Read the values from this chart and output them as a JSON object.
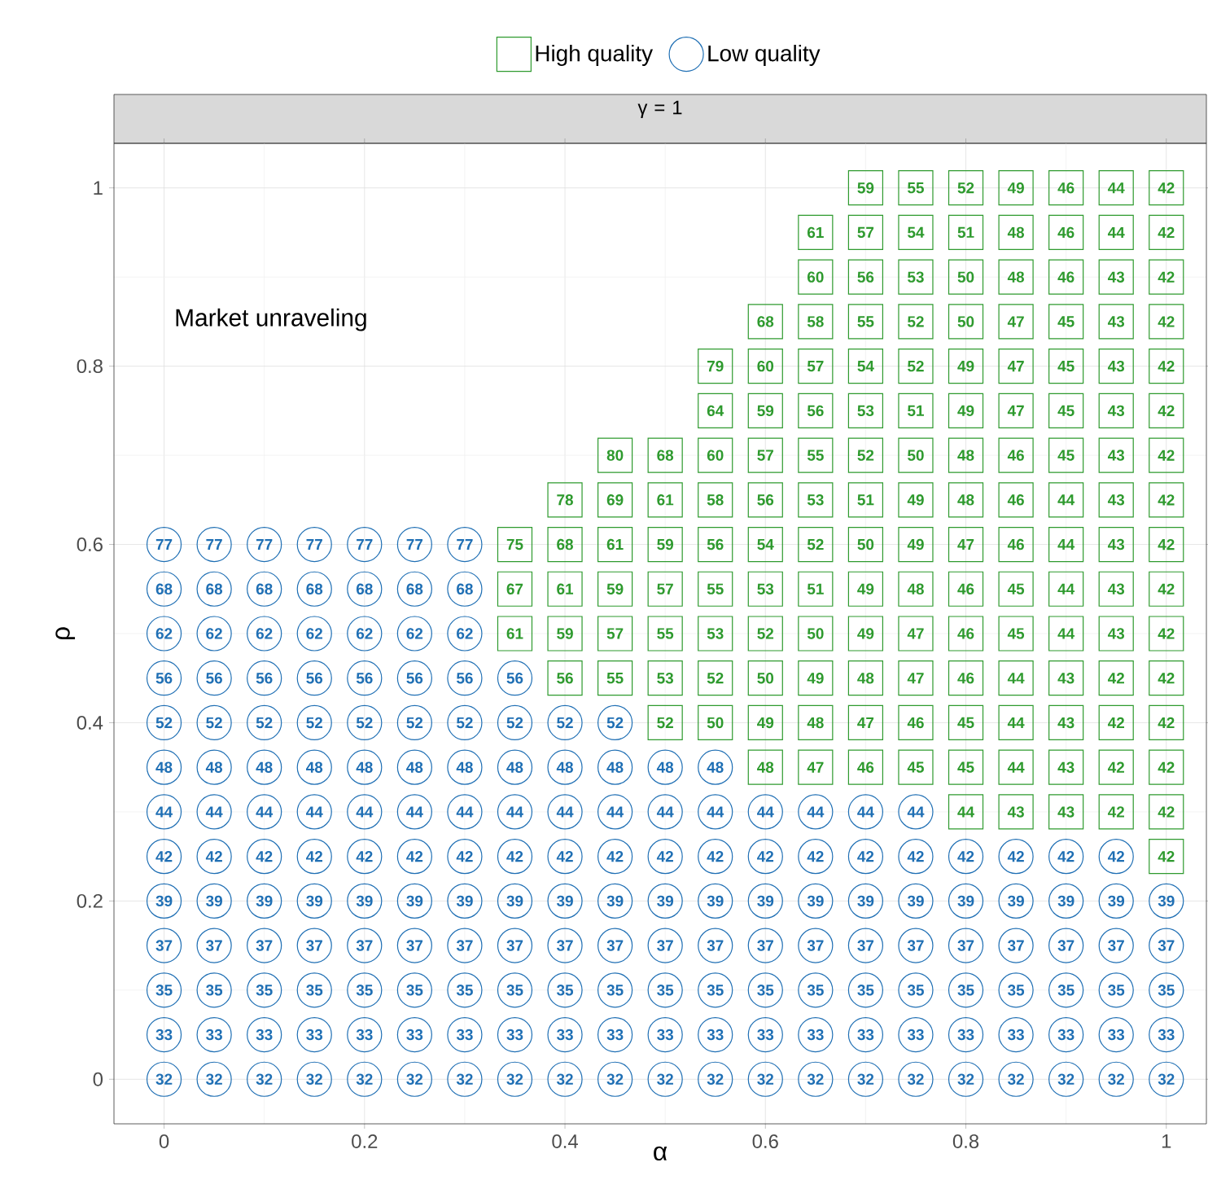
{
  "chart_data": {
    "type": "scatter",
    "title": "γ = 1",
    "xlabel": "α",
    "ylabel": "ρ",
    "xlim": [
      -0.05,
      1.04
    ],
    "ylim": [
      -0.05,
      1.05
    ],
    "xticks": [
      0,
      0.2,
      0.4,
      0.6,
      0.8,
      1
    ],
    "yticks": [
      0,
      0.2,
      0.4,
      0.6,
      0.8,
      1
    ],
    "grid": true,
    "legend": "top",
    "series": [
      {
        "name": "High quality",
        "color": "#2e9a2e",
        "marker": "square",
        "x": [
          1,
          0.8,
          0.85,
          0.9,
          0.95,
          1,
          0.6,
          0.65,
          0.7,
          0.75,
          0.8,
          0.85,
          0.9,
          0.95,
          1,
          0.5,
          0.55,
          0.6,
          0.65,
          0.7,
          0.75,
          0.8,
          0.85,
          0.9,
          0.95,
          1,
          0.4,
          0.45,
          0.5,
          0.55,
          0.6,
          0.65,
          0.7,
          0.75,
          0.8,
          0.85,
          0.9,
          0.95,
          1,
          0.35,
          0.4,
          0.45,
          0.5,
          0.55,
          0.6,
          0.65,
          0.7,
          0.75,
          0.8,
          0.85,
          0.9,
          0.95,
          1,
          0.35,
          0.4,
          0.45,
          0.5,
          0.55,
          0.6,
          0.65,
          0.7,
          0.75,
          0.8,
          0.85,
          0.9,
          0.95,
          1,
          0.35,
          0.4,
          0.45,
          0.5,
          0.55,
          0.6,
          0.65,
          0.7,
          0.75,
          0.8,
          0.85,
          0.9,
          0.95,
          1,
          0.4,
          0.45,
          0.5,
          0.55,
          0.6,
          0.65,
          0.7,
          0.75,
          0.8,
          0.85,
          0.9,
          0.95,
          1,
          0.45,
          0.5,
          0.55,
          0.6,
          0.65,
          0.7,
          0.75,
          0.8,
          0.85,
          0.9,
          0.95,
          1,
          0.55,
          0.6,
          0.65,
          0.7,
          0.75,
          0.8,
          0.85,
          0.9,
          0.95,
          1,
          0.55,
          0.6,
          0.65,
          0.7,
          0.75,
          0.8,
          0.85,
          0.9,
          0.95,
          1,
          0.6,
          0.65,
          0.7,
          0.75,
          0.8,
          0.85,
          0.9,
          0.95,
          1,
          0.65,
          0.7,
          0.75,
          0.8,
          0.85,
          0.9,
          0.95,
          1,
          0.65,
          0.7,
          0.75,
          0.8,
          0.85,
          0.9,
          0.95,
          1,
          0.7,
          0.75,
          0.8,
          0.85,
          0.9,
          0.95,
          1
        ],
        "values": [
          0.25,
          0.3,
          0.3,
          0.3,
          0.3,
          0.3,
          0.35,
          0.35,
          0.35,
          0.35,
          0.35,
          0.35,
          0.35,
          0.35,
          0.35,
          0.4,
          0.4,
          0.4,
          0.4,
          0.4,
          0.4,
          0.4,
          0.4,
          0.4,
          0.4,
          0.4,
          0.45,
          0.45,
          0.45,
          0.45,
          0.45,
          0.45,
          0.45,
          0.45,
          0.45,
          0.45,
          0.45,
          0.45,
          0.45,
          0.5,
          0.5,
          0.5,
          0.5,
          0.5,
          0.5,
          0.5,
          0.5,
          0.5,
          0.5,
          0.5,
          0.5,
          0.5,
          0.5,
          0.55,
          0.55,
          0.55,
          0.55,
          0.55,
          0.55,
          0.55,
          0.55,
          0.55,
          0.55,
          0.55,
          0.55,
          0.55,
          0.55,
          0.6,
          0.6,
          0.6,
          0.6,
          0.6,
          0.6,
          0.6,
          0.6,
          0.6,
          0.6,
          0.6,
          0.6,
          0.6,
          0.6,
          0.65,
          0.65,
          0.65,
          0.65,
          0.65,
          0.65,
          0.65,
          0.65,
          0.65,
          0.65,
          0.65,
          0.65,
          0.65,
          0.7,
          0.7,
          0.7,
          0.7,
          0.7,
          0.7,
          0.7,
          0.7,
          0.7,
          0.7,
          0.7,
          0.7,
          0.75,
          0.75,
          0.75,
          0.75,
          0.75,
          0.75,
          0.75,
          0.75,
          0.75,
          0.75,
          0.8,
          0.8,
          0.8,
          0.8,
          0.8,
          0.8,
          0.8,
          0.8,
          0.8,
          0.8,
          0.85,
          0.85,
          0.85,
          0.85,
          0.85,
          0.85,
          0.85,
          0.85,
          0.85,
          0.9,
          0.9,
          0.9,
          0.9,
          0.9,
          0.9,
          0.9,
          0.9,
          0.95,
          0.95,
          0.95,
          0.95,
          0.95,
          0.95,
          0.95,
          0.95,
          1,
          1,
          1,
          1,
          1,
          1,
          1
        ]
      },
      {
        "name": "Low quality",
        "color": "#1f6fb4",
        "marker": "circle",
        "x": [
          0,
          0.05,
          0.1,
          0.15,
          0.2,
          0.25,
          0.3,
          0.35,
          0.4,
          0.45,
          0.5,
          0.55,
          0.6,
          0.65,
          0.7,
          0.75,
          0.8,
          0.85,
          0.9,
          0.95,
          1,
          0,
          0.05,
          0.1,
          0.15,
          0.2,
          0.25,
          0.3,
          0.35,
          0.4,
          0.45,
          0.5,
          0.55,
          0.6,
          0.65,
          0.7,
          0.75,
          0.8,
          0.85,
          0.9,
          0.95,
          1,
          0,
          0.05,
          0.1,
          0.15,
          0.2,
          0.25,
          0.3,
          0.35,
          0.4,
          0.45,
          0.5,
          0.55,
          0.6,
          0.65,
          0.7,
          0.75,
          0.8,
          0.85,
          0.9,
          0.95,
          1,
          0,
          0.05,
          0.1,
          0.15,
          0.2,
          0.25,
          0.3,
          0.35,
          0.4,
          0.45,
          0.5,
          0.55,
          0.6,
          0.65,
          0.7,
          0.75,
          0.8,
          0.85,
          0.9,
          0.95,
          1,
          0,
          0.05,
          0.1,
          0.15,
          0.2,
          0.25,
          0.3,
          0.35,
          0.4,
          0.45,
          0.5,
          0.55,
          0.6,
          0.65,
          0.7,
          0.75,
          0.8,
          0.85,
          0.9,
          0.95,
          1,
          0,
          0.05,
          0.1,
          0.15,
          0.2,
          0.25,
          0.3,
          0.35,
          0.4,
          0.45,
          0.5,
          0.55,
          0.6,
          0.65,
          0.7,
          0.75,
          0.8,
          0.85,
          0.9,
          0.95,
          0,
          0.05,
          0.1,
          0.15,
          0.2,
          0.25,
          0.3,
          0.35,
          0.4,
          0.45,
          0.5,
          0.55,
          0.6,
          0.65,
          0.7,
          0.75,
          0,
          0.05,
          0.1,
          0.15,
          0.2,
          0.25,
          0.3,
          0.35,
          0.4,
          0.45,
          0.5,
          0.55,
          0,
          0.05,
          0.1,
          0.15,
          0.2,
          0.25,
          0.3,
          0.35,
          0.4,
          0.45,
          0,
          0.05,
          0.1,
          0.15,
          0.2,
          0.25,
          0.3,
          0.35,
          0,
          0.05,
          0.1,
          0.15,
          0.2,
          0.25,
          0.3,
          0,
          0.05,
          0.1,
          0.15,
          0.2,
          0.25,
          0.3,
          0,
          0.05,
          0.1,
          0.15,
          0.2,
          0.25,
          0.3
        ],
        "values": [
          0,
          0,
          0,
          0,
          0,
          0,
          0,
          0,
          0,
          0,
          0,
          0,
          0,
          0,
          0,
          0,
          0,
          0,
          0,
          0,
          0,
          0.05,
          0.05,
          0.05,
          0.05,
          0.05,
          0.05,
          0.05,
          0.05,
          0.05,
          0.05,
          0.05,
          0.05,
          0.05,
          0.05,
          0.05,
          0.05,
          0.05,
          0.05,
          0.05,
          0.05,
          0.05,
          0.1,
          0.1,
          0.1,
          0.1,
          0.1,
          0.1,
          0.1,
          0.1,
          0.1,
          0.1,
          0.1,
          0.1,
          0.1,
          0.1,
          0.1,
          0.1,
          0.1,
          0.1,
          0.1,
          0.1,
          0.1,
          0.15,
          0.15,
          0.15,
          0.15,
          0.15,
          0.15,
          0.15,
          0.15,
          0.15,
          0.15,
          0.15,
          0.15,
          0.15,
          0.15,
          0.15,
          0.15,
          0.15,
          0.15,
          0.15,
          0.15,
          0.15,
          0.2,
          0.2,
          0.2,
          0.2,
          0.2,
          0.2,
          0.2,
          0.2,
          0.2,
          0.2,
          0.2,
          0.2,
          0.2,
          0.2,
          0.2,
          0.2,
          0.2,
          0.2,
          0.2,
          0.2,
          0.2,
          0.25,
          0.25,
          0.25,
          0.25,
          0.25,
          0.25,
          0.25,
          0.25,
          0.25,
          0.25,
          0.25,
          0.25,
          0.25,
          0.25,
          0.25,
          0.25,
          0.25,
          0.25,
          0.25,
          0.25,
          0.3,
          0.3,
          0.3,
          0.3,
          0.3,
          0.3,
          0.3,
          0.3,
          0.3,
          0.3,
          0.3,
          0.3,
          0.3,
          0.3,
          0.3,
          0.3,
          0.35,
          0.35,
          0.35,
          0.35,
          0.35,
          0.35,
          0.35,
          0.35,
          0.35,
          0.35,
          0.35,
          0.35,
          0.4,
          0.4,
          0.4,
          0.4,
          0.4,
          0.4,
          0.4,
          0.4,
          0.4,
          0.4,
          0.45,
          0.45,
          0.45,
          0.45,
          0.45,
          0.45,
          0.45,
          0.45,
          0.5,
          0.5,
          0.5,
          0.5,
          0.5,
          0.5,
          0.5,
          0.55,
          0.55,
          0.55,
          0.55,
          0.55,
          0.55,
          0.55,
          0.6,
          0.6,
          0.6,
          0.6,
          0.6,
          0.6,
          0.6
        ]
      }
    ],
    "annotations": [
      "Market unraveling",
      {
        "text": "42",
        "x": 1,
        "y": 0.25
      },
      {
        "text": "44",
        "x": 0.8,
        "y": 0.3
      },
      {
        "text": "43",
        "x": 0.85,
        "y": 0.3
      },
      {
        "text": "43",
        "x": 0.9,
        "y": 0.3
      },
      {
        "text": "42",
        "x": 0.95,
        "y": 0.3
      },
      {
        "text": "42",
        "x": 1,
        "y": 0.3
      },
      {
        "text": "48",
        "x": 0.6,
        "y": 0.35
      },
      {
        "text": "47",
        "x": 0.65,
        "y": 0.35
      },
      {
        "text": "46",
        "x": 0.7,
        "y": 0.35
      },
      {
        "text": "45",
        "x": 0.75,
        "y": 0.35
      },
      {
        "text": "45",
        "x": 0.8,
        "y": 0.35
      },
      {
        "text": "44",
        "x": 0.85,
        "y": 0.35
      },
      {
        "text": "43",
        "x": 0.9,
        "y": 0.35
      },
      {
        "text": "42",
        "x": 0.95,
        "y": 0.35
      },
      {
        "text": "42",
        "x": 1,
        "y": 0.35
      },
      {
        "text": "52",
        "x": 0.5,
        "y": 0.4
      },
      {
        "text": "50",
        "x": 0.55,
        "y": 0.4
      },
      {
        "text": "49",
        "x": 0.6,
        "y": 0.4
      },
      {
        "text": "48",
        "x": 0.65,
        "y": 0.4
      },
      {
        "text": "47",
        "x": 0.7,
        "y": 0.4
      },
      {
        "text": "46",
        "x": 0.75,
        "y": 0.4
      },
      {
        "text": "45",
        "x": 0.8,
        "y": 0.4
      },
      {
        "text": "44",
        "x": 0.85,
        "y": 0.4
      },
      {
        "text": "43",
        "x": 0.9,
        "y": 0.4
      },
      {
        "text": "42",
        "x": 0.95,
        "y": 0.4
      },
      {
        "text": "42",
        "x": 1,
        "y": 0.4
      },
      {
        "text": "56",
        "x": 0.4,
        "y": 0.45
      },
      {
        "text": "55",
        "x": 0.45,
        "y": 0.45
      },
      {
        "text": "53",
        "x": 0.5,
        "y": 0.45
      },
      {
        "text": "52",
        "x": 0.55,
        "y": 0.45
      },
      {
        "text": "50",
        "x": 0.6,
        "y": 0.45
      },
      {
        "text": "49",
        "x": 0.65,
        "y": 0.45
      },
      {
        "text": "48",
        "x": 0.7,
        "y": 0.45
      },
      {
        "text": "47",
        "x": 0.75,
        "y": 0.45
      },
      {
        "text": "46",
        "x": 0.8,
        "y": 0.45
      },
      {
        "text": "44",
        "x": 0.85,
        "y": 0.45
      },
      {
        "text": "43",
        "x": 0.9,
        "y": 0.45
      },
      {
        "text": "42",
        "x": 0.95,
        "y": 0.45
      },
      {
        "text": "42",
        "x": 1,
        "y": 0.45
      },
      {
        "text": "61",
        "x": 0.35,
        "y": 0.5
      },
      {
        "text": "59",
        "x": 0.4,
        "y": 0.5
      },
      {
        "text": "57",
        "x": 0.45,
        "y": 0.5
      },
      {
        "text": "55",
        "x": 0.5,
        "y": 0.5
      },
      {
        "text": "53",
        "x": 0.55,
        "y": 0.5
      },
      {
        "text": "52",
        "x": 0.6,
        "y": 0.5
      },
      {
        "text": "50",
        "x": 0.65,
        "y": 0.5
      },
      {
        "text": "49",
        "x": 0.7,
        "y": 0.5
      },
      {
        "text": "47",
        "x": 0.75,
        "y": 0.5
      },
      {
        "text": "46",
        "x": 0.8,
        "y": 0.5
      },
      {
        "text": "45",
        "x": 0.85,
        "y": 0.5
      },
      {
        "text": "44",
        "x": 0.9,
        "y": 0.5
      },
      {
        "text": "43",
        "x": 0.95,
        "y": 0.5
      },
      {
        "text": "42",
        "x": 1,
        "y": 0.5
      },
      {
        "text": "67",
        "x": 0.35,
        "y": 0.55
      },
      {
        "text": "61",
        "x": 0.4,
        "y": 0.55
      },
      {
        "text": "59",
        "x": 0.45,
        "y": 0.55
      },
      {
        "text": "57",
        "x": 0.5,
        "y": 0.55
      },
      {
        "text": "55",
        "x": 0.55,
        "y": 0.55
      },
      {
        "text": "53",
        "x": 0.6,
        "y": 0.55
      },
      {
        "text": "51",
        "x": 0.65,
        "y": 0.55
      },
      {
        "text": "49",
        "x": 0.7,
        "y": 0.55
      },
      {
        "text": "48",
        "x": 0.75,
        "y": 0.55
      },
      {
        "text": "46",
        "x": 0.8,
        "y": 0.55
      },
      {
        "text": "45",
        "x": 0.85,
        "y": 0.55
      },
      {
        "text": "44",
        "x": 0.9,
        "y": 0.55
      },
      {
        "text": "43",
        "x": 0.95,
        "y": 0.55
      },
      {
        "text": "42",
        "x": 1,
        "y": 0.55
      },
      {
        "text": "75",
        "x": 0.35,
        "y": 0.6
      },
      {
        "text": "68",
        "x": 0.4,
        "y": 0.6
      },
      {
        "text": "61",
        "x": 0.45,
        "y": 0.6
      },
      {
        "text": "59",
        "x": 0.5,
        "y": 0.6
      },
      {
        "text": "56",
        "x": 0.55,
        "y": 0.6
      },
      {
        "text": "54",
        "x": 0.6,
        "y": 0.6
      },
      {
        "text": "52",
        "x": 0.65,
        "y": 0.6
      },
      {
        "text": "50",
        "x": 0.7,
        "y": 0.6
      },
      {
        "text": "49",
        "x": 0.75,
        "y": 0.6
      },
      {
        "text": "47",
        "x": 0.8,
        "y": 0.6
      },
      {
        "text": "46",
        "x": 0.85,
        "y": 0.6
      },
      {
        "text": "44",
        "x": 0.9,
        "y": 0.6
      },
      {
        "text": "43",
        "x": 0.95,
        "y": 0.6
      },
      {
        "text": "42",
        "x": 1,
        "y": 0.6
      },
      {
        "text": "78",
        "x": 0.4,
        "y": 0.65
      },
      {
        "text": "69",
        "x": 0.45,
        "y": 0.65
      },
      {
        "text": "61",
        "x": 0.5,
        "y": 0.65
      },
      {
        "text": "58",
        "x": 0.55,
        "y": 0.65
      },
      {
        "text": "56",
        "x": 0.6,
        "y": 0.65
      },
      {
        "text": "53",
        "x": 0.65,
        "y": 0.65
      },
      {
        "text": "51",
        "x": 0.7,
        "y": 0.65
      },
      {
        "text": "49",
        "x": 0.75,
        "y": 0.65
      },
      {
        "text": "48",
        "x": 0.8,
        "y": 0.65
      },
      {
        "text": "46",
        "x": 0.85,
        "y": 0.65
      },
      {
        "text": "44",
        "x": 0.9,
        "y": 0.65
      },
      {
        "text": "43",
        "x": 0.95,
        "y": 0.65
      },
      {
        "text": "42",
        "x": 1,
        "y": 0.65
      },
      {
        "text": "80",
        "x": 0.45,
        "y": 0.7
      },
      {
        "text": "68",
        "x": 0.5,
        "y": 0.7
      },
      {
        "text": "60",
        "x": 0.55,
        "y": 0.7
      },
      {
        "text": "57",
        "x": 0.6,
        "y": 0.7
      },
      {
        "text": "55",
        "x": 0.65,
        "y": 0.7
      },
      {
        "text": "52",
        "x": 0.7,
        "y": 0.7
      },
      {
        "text": "50",
        "x": 0.75,
        "y": 0.7
      },
      {
        "text": "48",
        "x": 0.8,
        "y": 0.7
      },
      {
        "text": "46",
        "x": 0.85,
        "y": 0.7
      },
      {
        "text": "45",
        "x": 0.9,
        "y": 0.7
      },
      {
        "text": "43",
        "x": 0.95,
        "y": 0.7
      },
      {
        "text": "42",
        "x": 1,
        "y": 0.7
      },
      {
        "text": "64",
        "x": 0.55,
        "y": 0.75
      },
      {
        "text": "59",
        "x": 0.6,
        "y": 0.75
      },
      {
        "text": "56",
        "x": 0.65,
        "y": 0.75
      },
      {
        "text": "53",
        "x": 0.7,
        "y": 0.75
      },
      {
        "text": "51",
        "x": 0.75,
        "y": 0.75
      },
      {
        "text": "49",
        "x": 0.8,
        "y": 0.75
      },
      {
        "text": "47",
        "x": 0.85,
        "y": 0.75
      },
      {
        "text": "45",
        "x": 0.9,
        "y": 0.75
      },
      {
        "text": "43",
        "x": 0.95,
        "y": 0.75
      },
      {
        "text": "42",
        "x": 1,
        "y": 0.75
      },
      {
        "text": "79",
        "x": 0.55,
        "y": 0.8
      },
      {
        "text": "60",
        "x": 0.6,
        "y": 0.8
      },
      {
        "text": "57",
        "x": 0.65,
        "y": 0.8
      },
      {
        "text": "54",
        "x": 0.7,
        "y": 0.8
      },
      {
        "text": "52",
        "x": 0.75,
        "y": 0.8
      },
      {
        "text": "49",
        "x": 0.8,
        "y": 0.8
      },
      {
        "text": "47",
        "x": 0.85,
        "y": 0.8
      },
      {
        "text": "45",
        "x": 0.9,
        "y": 0.8
      },
      {
        "text": "43",
        "x": 0.95,
        "y": 0.8
      },
      {
        "text": "42",
        "x": 1,
        "y": 0.8
      },
      {
        "text": "68",
        "x": 0.6,
        "y": 0.85
      },
      {
        "text": "58",
        "x": 0.65,
        "y": 0.85
      },
      {
        "text": "55",
        "x": 0.7,
        "y": 0.85
      },
      {
        "text": "52",
        "x": 0.75,
        "y": 0.85
      },
      {
        "text": "50",
        "x": 0.8,
        "y": 0.85
      },
      {
        "text": "47",
        "x": 0.85,
        "y": 0.85
      },
      {
        "text": "45",
        "x": 0.9,
        "y": 0.85
      },
      {
        "text": "43",
        "x": 0.95,
        "y": 0.85
      },
      {
        "text": "42",
        "x": 1,
        "y": 0.85
      },
      {
        "text": "60",
        "x": 0.65,
        "y": 0.9
      },
      {
        "text": "56",
        "x": 0.7,
        "y": 0.9
      },
      {
        "text": "53",
        "x": 0.75,
        "y": 0.9
      },
      {
        "text": "50",
        "x": 0.8,
        "y": 0.9
      },
      {
        "text": "48",
        "x": 0.85,
        "y": 0.9
      },
      {
        "text": "46",
        "x": 0.9,
        "y": 0.9
      },
      {
        "text": "43",
        "x": 0.95,
        "y": 0.9
      },
      {
        "text": "42",
        "x": 1,
        "y": 0.9
      },
      {
        "text": "61",
        "x": 0.65,
        "y": 0.95
      },
      {
        "text": "57",
        "x": 0.7,
        "y": 0.95
      },
      {
        "text": "54",
        "x": 0.75,
        "y": 0.95
      },
      {
        "text": "51",
        "x": 0.8,
        "y": 0.95
      },
      {
        "text": "48",
        "x": 0.85,
        "y": 0.95
      },
      {
        "text": "46",
        "x": 0.9,
        "y": 0.95
      },
      {
        "text": "44",
        "x": 0.95,
        "y": 0.95
      },
      {
        "text": "42",
        "x": 1,
        "y": 0.95
      },
      {
        "text": "59",
        "x": 0.7,
        "y": 1
      },
      {
        "text": "55",
        "x": 0.75,
        "y": 1
      },
      {
        "text": "52",
        "x": 0.8,
        "y": 1
      },
      {
        "text": "49",
        "x": 0.85,
        "y": 1
      },
      {
        "text": "46",
        "x": 0.9,
        "y": 1
      },
      {
        "text": "44",
        "x": 0.95,
        "y": 1
      },
      {
        "text": "42",
        "x": 1,
        "y": 1
      },
      {
        "text": "32",
        "x": 0,
        "y": 0
      },
      {
        "text": "32",
        "x": 0.05,
        "y": 0
      },
      {
        "text": "32",
        "x": 0.1,
        "y": 0
      },
      {
        "text": "32",
        "x": 0.15,
        "y": 0
      },
      {
        "text": "32",
        "x": 0.2,
        "y": 0
      },
      {
        "text": "32",
        "x": 0.25,
        "y": 0
      },
      {
        "text": "32",
        "x": 0.3,
        "y": 0
      },
      {
        "text": "32",
        "x": 0.35,
        "y": 0
      },
      {
        "text": "32",
        "x": 0.4,
        "y": 0
      },
      {
        "text": "32",
        "x": 0.45,
        "y": 0
      },
      {
        "text": "32",
        "x": 0.5,
        "y": 0
      },
      {
        "text": "32",
        "x": 0.55,
        "y": 0
      },
      {
        "text": "32",
        "x": 0.6,
        "y": 0
      },
      {
        "text": "32",
        "x": 0.65,
        "y": 0
      },
      {
        "text": "32",
        "x": 0.7,
        "y": 0
      },
      {
        "text": "32",
        "x": 0.75,
        "y": 0
      },
      {
        "text": "32",
        "x": 0.8,
        "y": 0
      },
      {
        "text": "32",
        "x": 0.85,
        "y": 0
      },
      {
        "text": "32",
        "x": 0.9,
        "y": 0
      },
      {
        "text": "32",
        "x": 0.95,
        "y": 0
      },
      {
        "text": "32",
        "x": 1,
        "y": 0
      },
      {
        "text": "33",
        "x": 0,
        "y": 0.05
      },
      {
        "text": "33",
        "x": 0.05,
        "y": 0.05
      },
      {
        "text": "33",
        "x": 0.1,
        "y": 0.05
      },
      {
        "text": "33",
        "x": 0.15,
        "y": 0.05
      },
      {
        "text": "33",
        "x": 0.2,
        "y": 0.05
      },
      {
        "text": "33",
        "x": 0.25,
        "y": 0.05
      },
      {
        "text": "33",
        "x": 0.3,
        "y": 0.05
      },
      {
        "text": "33",
        "x": 0.35,
        "y": 0.05
      },
      {
        "text": "33",
        "x": 0.4,
        "y": 0.05
      },
      {
        "text": "33",
        "x": 0.45,
        "y": 0.05
      },
      {
        "text": "33",
        "x": 0.5,
        "y": 0.05
      },
      {
        "text": "33",
        "x": 0.55,
        "y": 0.05
      },
      {
        "text": "33",
        "x": 0.6,
        "y": 0.05
      },
      {
        "text": "33",
        "x": 0.65,
        "y": 0.05
      },
      {
        "text": "33",
        "x": 0.7,
        "y": 0.05
      },
      {
        "text": "33",
        "x": 0.75,
        "y": 0.05
      },
      {
        "text": "33",
        "x": 0.8,
        "y": 0.05
      },
      {
        "text": "33",
        "x": 0.85,
        "y": 0.05
      },
      {
        "text": "33",
        "x": 0.9,
        "y": 0.05
      },
      {
        "text": "33",
        "x": 0.95,
        "y": 0.05
      },
      {
        "text": "33",
        "x": 1,
        "y": 0.05
      },
      {
        "text": "35",
        "x": 0,
        "y": 0.1
      },
      {
        "text": "35",
        "x": 0.05,
        "y": 0.1
      },
      {
        "text": "35",
        "x": 0.1,
        "y": 0.1
      },
      {
        "text": "35",
        "x": 0.15,
        "y": 0.1
      },
      {
        "text": "35",
        "x": 0.2,
        "y": 0.1
      },
      {
        "text": "35",
        "x": 0.25,
        "y": 0.1
      },
      {
        "text": "35",
        "x": 0.3,
        "y": 0.1
      },
      {
        "text": "35",
        "x": 0.35,
        "y": 0.1
      },
      {
        "text": "35",
        "x": 0.4,
        "y": 0.1
      },
      {
        "text": "35",
        "x": 0.45,
        "y": 0.1
      },
      {
        "text": "35",
        "x": 0.5,
        "y": 0.1
      },
      {
        "text": "35",
        "x": 0.55,
        "y": 0.1
      },
      {
        "text": "35",
        "x": 0.6,
        "y": 0.1
      },
      {
        "text": "35",
        "x": 0.65,
        "y": 0.1
      },
      {
        "text": "35",
        "x": 0.7,
        "y": 0.1
      },
      {
        "text": "35",
        "x": 0.75,
        "y": 0.1
      },
      {
        "text": "35",
        "x": 0.8,
        "y": 0.1
      },
      {
        "text": "35",
        "x": 0.85,
        "y": 0.1
      },
      {
        "text": "35",
        "x": 0.9,
        "y": 0.1
      },
      {
        "text": "35",
        "x": 0.95,
        "y": 0.1
      },
      {
        "text": "35",
        "x": 1,
        "y": 0.1
      },
      {
        "text": "37",
        "x": 0,
        "y": 0.15
      },
      {
        "text": "37",
        "x": 0.05,
        "y": 0.15
      },
      {
        "text": "37",
        "x": 0.1,
        "y": 0.15
      },
      {
        "text": "37",
        "x": 0.15,
        "y": 0.15
      },
      {
        "text": "37",
        "x": 0.2,
        "y": 0.15
      },
      {
        "text": "37",
        "x": 0.25,
        "y": 0.15
      },
      {
        "text": "37",
        "x": 0.3,
        "y": 0.15
      },
      {
        "text": "37",
        "x": 0.35,
        "y": 0.15
      },
      {
        "text": "37",
        "x": 0.4,
        "y": 0.15
      },
      {
        "text": "37",
        "x": 0.45,
        "y": 0.15
      },
      {
        "text": "37",
        "x": 0.5,
        "y": 0.15
      },
      {
        "text": "37",
        "x": 0.55,
        "y": 0.15
      },
      {
        "text": "37",
        "x": 0.6,
        "y": 0.15
      },
      {
        "text": "37",
        "x": 0.65,
        "y": 0.15
      },
      {
        "text": "37",
        "x": 0.7,
        "y": 0.15
      },
      {
        "text": "37",
        "x": 0.75,
        "y": 0.15
      },
      {
        "text": "37",
        "x": 0.8,
        "y": 0.15
      },
      {
        "text": "37",
        "x": 0.85,
        "y": 0.15
      },
      {
        "text": "37",
        "x": 0.9,
        "y": 0.15
      },
      {
        "text": "37",
        "x": 0.95,
        "y": 0.15
      },
      {
        "text": "37",
        "x": 1,
        "y": 0.15
      },
      {
        "text": "39",
        "x": 0,
        "y": 0.2
      },
      {
        "text": "39",
        "x": 0.05,
        "y": 0.2
      },
      {
        "text": "39",
        "x": 0.1,
        "y": 0.2
      },
      {
        "text": "39",
        "x": 0.15,
        "y": 0.2
      },
      {
        "text": "39",
        "x": 0.2,
        "y": 0.2
      },
      {
        "text": "39",
        "x": 0.25,
        "y": 0.2
      },
      {
        "text": "39",
        "x": 0.3,
        "y": 0.2
      },
      {
        "text": "39",
        "x": 0.35,
        "y": 0.2
      },
      {
        "text": "39",
        "x": 0.4,
        "y": 0.2
      },
      {
        "text": "39",
        "x": 0.45,
        "y": 0.2
      },
      {
        "text": "39",
        "x": 0.5,
        "y": 0.2
      },
      {
        "text": "39",
        "x": 0.55,
        "y": 0.2
      },
      {
        "text": "39",
        "x": 0.6,
        "y": 0.2
      },
      {
        "text": "39",
        "x": 0.65,
        "y": 0.2
      },
      {
        "text": "39",
        "x": 0.7,
        "y": 0.2
      },
      {
        "text": "39",
        "x": 0.75,
        "y": 0.2
      },
      {
        "text": "39",
        "x": 0.8,
        "y": 0.2
      },
      {
        "text": "39",
        "x": 0.85,
        "y": 0.2
      },
      {
        "text": "39",
        "x": 0.9,
        "y": 0.2
      },
      {
        "text": "39",
        "x": 0.95,
        "y": 0.2
      },
      {
        "text": "39",
        "x": 1,
        "y": 0.2
      },
      {
        "text": "42",
        "x": 0,
        "y": 0.25
      },
      {
        "text": "42",
        "x": 0.05,
        "y": 0.25
      },
      {
        "text": "42",
        "x": 0.1,
        "y": 0.25
      },
      {
        "text": "42",
        "x": 0.15,
        "y": 0.25
      },
      {
        "text": "42",
        "x": 0.2,
        "y": 0.25
      },
      {
        "text": "42",
        "x": 0.25,
        "y": 0.25
      },
      {
        "text": "42",
        "x": 0.3,
        "y": 0.25
      },
      {
        "text": "42",
        "x": 0.35,
        "y": 0.25
      },
      {
        "text": "42",
        "x": 0.4,
        "y": 0.25
      },
      {
        "text": "42",
        "x": 0.45,
        "y": 0.25
      },
      {
        "text": "42",
        "x": 0.5,
        "y": 0.25
      },
      {
        "text": "42",
        "x": 0.55,
        "y": 0.25
      },
      {
        "text": "42",
        "x": 0.6,
        "y": 0.25
      },
      {
        "text": "42",
        "x": 0.65,
        "y": 0.25
      },
      {
        "text": "42",
        "x": 0.7,
        "y": 0.25
      },
      {
        "text": "42",
        "x": 0.75,
        "y": 0.25
      },
      {
        "text": "42",
        "x": 0.8,
        "y": 0.25
      },
      {
        "text": "42",
        "x": 0.85,
        "y": 0.25
      },
      {
        "text": "42",
        "x": 0.9,
        "y": 0.25
      },
      {
        "text": "42",
        "x": 0.95,
        "y": 0.25
      },
      {
        "text": "44",
        "x": 0,
        "y": 0.3
      },
      {
        "text": "44",
        "x": 0.05,
        "y": 0.3
      },
      {
        "text": "44",
        "x": 0.1,
        "y": 0.3
      },
      {
        "text": "44",
        "x": 0.15,
        "y": 0.3
      },
      {
        "text": "44",
        "x": 0.2,
        "y": 0.3
      },
      {
        "text": "44",
        "x": 0.25,
        "y": 0.3
      },
      {
        "text": "44",
        "x": 0.3,
        "y": 0.3
      },
      {
        "text": "44",
        "x": 0.35,
        "y": 0.3
      },
      {
        "text": "44",
        "x": 0.4,
        "y": 0.3
      },
      {
        "text": "44",
        "x": 0.45,
        "y": 0.3
      },
      {
        "text": "44",
        "x": 0.5,
        "y": 0.3
      },
      {
        "text": "44",
        "x": 0.55,
        "y": 0.3
      },
      {
        "text": "44",
        "x": 0.6,
        "y": 0.3
      },
      {
        "text": "44",
        "x": 0.65,
        "y": 0.3
      },
      {
        "text": "44",
        "x": 0.7,
        "y": 0.3
      },
      {
        "text": "44",
        "x": 0.75,
        "y": 0.3
      },
      {
        "text": "48",
        "x": 0,
        "y": 0.35
      },
      {
        "text": "48",
        "x": 0.05,
        "y": 0.35
      },
      {
        "text": "48",
        "x": 0.1,
        "y": 0.35
      },
      {
        "text": "48",
        "x": 0.15,
        "y": 0.35
      },
      {
        "text": "48",
        "x": 0.2,
        "y": 0.35
      },
      {
        "text": "48",
        "x": 0.25,
        "y": 0.35
      },
      {
        "text": "48",
        "x": 0.3,
        "y": 0.35
      },
      {
        "text": "48",
        "x": 0.35,
        "y": 0.35
      },
      {
        "text": "48",
        "x": 0.4,
        "y": 0.35
      },
      {
        "text": "48",
        "x": 0.45,
        "y": 0.35
      },
      {
        "text": "48",
        "x": 0.5,
        "y": 0.35
      },
      {
        "text": "48",
        "x": 0.55,
        "y": 0.35
      },
      {
        "text": "52",
        "x": 0,
        "y": 0.4
      },
      {
        "text": "52",
        "x": 0.05,
        "y": 0.4
      },
      {
        "text": "52",
        "x": 0.1,
        "y": 0.4
      },
      {
        "text": "52",
        "x": 0.15,
        "y": 0.4
      },
      {
        "text": "52",
        "x": 0.2,
        "y": 0.4
      },
      {
        "text": "52",
        "x": 0.25,
        "y": 0.4
      },
      {
        "text": "52",
        "x": 0.3,
        "y": 0.4
      },
      {
        "text": "52",
        "x": 0.35,
        "y": 0.4
      },
      {
        "text": "52",
        "x": 0.4,
        "y": 0.4
      },
      {
        "text": "52",
        "x": 0.45,
        "y": 0.4
      },
      {
        "text": "56",
        "x": 0,
        "y": 0.45
      },
      {
        "text": "56",
        "x": 0.05,
        "y": 0.45
      },
      {
        "text": "56",
        "x": 0.1,
        "y": 0.45
      },
      {
        "text": "56",
        "x": 0.15,
        "y": 0.45
      },
      {
        "text": "56",
        "x": 0.2,
        "y": 0.45
      },
      {
        "text": "56",
        "x": 0.25,
        "y": 0.45
      },
      {
        "text": "56",
        "x": 0.3,
        "y": 0.45
      },
      {
        "text": "56",
        "x": 0.35,
        "y": 0.45
      },
      {
        "text": "62",
        "x": 0,
        "y": 0.5
      },
      {
        "text": "62",
        "x": 0.05,
        "y": 0.5
      },
      {
        "text": "62",
        "x": 0.1,
        "y": 0.5
      },
      {
        "text": "62",
        "x": 0.15,
        "y": 0.5
      },
      {
        "text": "62",
        "x": 0.2,
        "y": 0.5
      },
      {
        "text": "62",
        "x": 0.25,
        "y": 0.5
      },
      {
        "text": "62",
        "x": 0.3,
        "y": 0.5
      },
      {
        "text": "68",
        "x": 0,
        "y": 0.55
      },
      {
        "text": "68",
        "x": 0.05,
        "y": 0.55
      },
      {
        "text": "68",
        "x": 0.1,
        "y": 0.55
      },
      {
        "text": "68",
        "x": 0.15,
        "y": 0.55
      },
      {
        "text": "68",
        "x": 0.2,
        "y": 0.55
      },
      {
        "text": "68",
        "x": 0.25,
        "y": 0.55
      },
      {
        "text": "68",
        "x": 0.3,
        "y": 0.55
      },
      {
        "text": "77",
        "x": 0,
        "y": 0.6
      },
      {
        "text": "77",
        "x": 0.05,
        "y": 0.6
      },
      {
        "text": "77",
        "x": 0.1,
        "y": 0.6
      },
      {
        "text": "77",
        "x": 0.15,
        "y": 0.6
      },
      {
        "text": "77",
        "x": 0.2,
        "y": 0.6
      },
      {
        "text": "77",
        "x": 0.25,
        "y": 0.6
      },
      {
        "text": "77",
        "x": 0.3,
        "y": 0.6
      }
    ]
  }
}
